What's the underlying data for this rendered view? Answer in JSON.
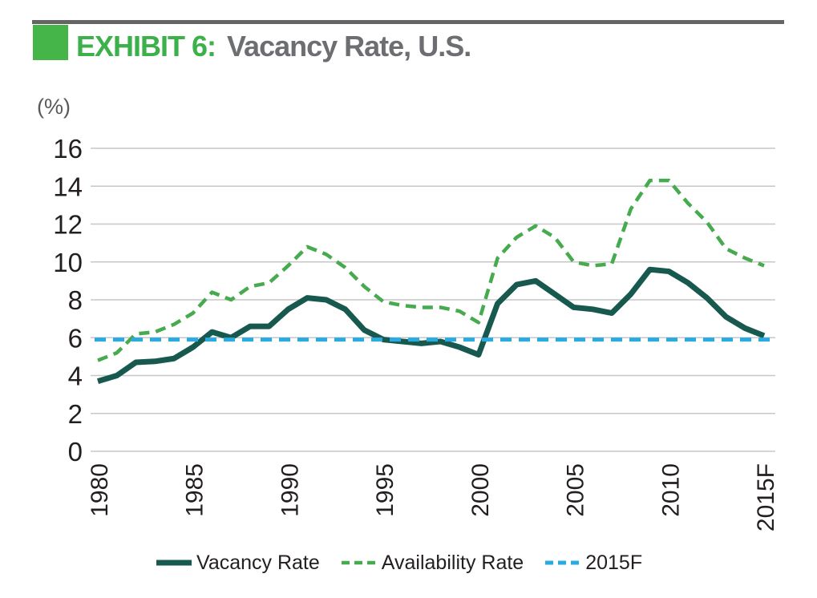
{
  "header": {
    "exhibit_label": "EXHIBIT 6:",
    "title": "Vacancy Rate, U.S.",
    "accent_green": "#46b549",
    "rule_color": "#656565",
    "title_gray": "#6d6e71"
  },
  "chart_data": {
    "type": "line",
    "title": "Vacancy Rate, U.S.",
    "unit_label": "(%)",
    "xlabel": "",
    "ylabel": "(%)",
    "ylim": [
      0,
      16
    ],
    "y_ticks": [
      0,
      2,
      4,
      6,
      8,
      10,
      12,
      14,
      16
    ],
    "grid": "horizontal",
    "legend_position": "bottom",
    "grid_color": "#c7c7c7",
    "axis_text_color": "#231f20",
    "x": [
      1980,
      1981,
      1982,
      1983,
      1984,
      1985,
      1986,
      1987,
      1988,
      1989,
      1990,
      1991,
      1992,
      1993,
      1994,
      1995,
      1996,
      1997,
      1998,
      1999,
      2000,
      2001,
      2002,
      2003,
      2004,
      2005,
      2006,
      2007,
      2008,
      2009,
      2010,
      2011,
      2012,
      2013,
      2014,
      2015
    ],
    "x_ticks": [
      {
        "label": "1980",
        "year": 1980
      },
      {
        "label": "1985",
        "year": 1985
      },
      {
        "label": "1990",
        "year": 1990
      },
      {
        "label": "1995",
        "year": 1995
      },
      {
        "label": "2000",
        "year": 2000
      },
      {
        "label": "2005",
        "year": 2005
      },
      {
        "label": "2010",
        "year": 2010
      },
      {
        "label": "2015F",
        "year": 2015
      }
    ],
    "series": [
      {
        "name": "Vacancy Rate",
        "style": "solid",
        "color": "#17594e",
        "stroke_width": 7,
        "values": [
          3.7,
          4.0,
          4.7,
          4.75,
          4.9,
          5.5,
          6.3,
          6.0,
          6.6,
          6.6,
          7.5,
          8.1,
          8.0,
          7.5,
          6.4,
          5.9,
          5.8,
          5.7,
          5.8,
          5.5,
          5.1,
          7.8,
          8.8,
          9.0,
          8.3,
          7.6,
          7.5,
          7.3,
          8.3,
          9.6,
          9.5,
          8.9,
          8.1,
          7.1,
          6.5,
          6.1
        ]
      },
      {
        "name": "Availability Rate",
        "style": "dashed",
        "color": "#46aa4e",
        "stroke_width": 4.5,
        "dash": "13 8",
        "values": [
          4.8,
          5.2,
          6.2,
          6.3,
          6.7,
          7.3,
          8.4,
          8.0,
          8.7,
          8.9,
          9.8,
          10.8,
          10.4,
          9.7,
          8.7,
          7.9,
          7.7,
          7.6,
          7.6,
          7.4,
          6.8,
          10.2,
          11.3,
          11.9,
          11.3,
          10.0,
          9.8,
          9.9,
          12.8,
          14.3,
          14.3,
          13.1,
          12.1,
          10.7,
          10.2,
          9.8
        ]
      },
      {
        "name": "2015F",
        "style": "dashed",
        "color": "#29abe2",
        "stroke_width": 5,
        "dash": "14 9",
        "constant": 5.9
      }
    ]
  }
}
